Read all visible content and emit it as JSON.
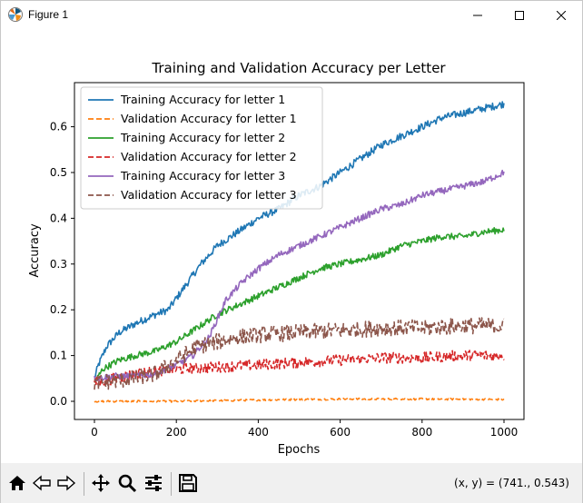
{
  "window": {
    "title": "Figure 1",
    "minimize_icon": "minimize-icon",
    "maximize_icon": "maximize-icon",
    "close_icon": "close-icon"
  },
  "toolbar": {
    "buttons": [
      "home-icon",
      "back-arrow-icon",
      "forward-arrow-icon",
      "pan-icon",
      "zoom-icon",
      "configure-subplots-icon",
      "save-icon"
    ],
    "coords_text": "(x, y) = (741., 0.543)"
  },
  "chart_data": {
    "type": "line",
    "title": "Training and Validation Accuracy per Letter",
    "xlabel": "Epochs",
    "ylabel": "Accuracy",
    "xlim": [
      0,
      1000
    ],
    "ylim": [
      0.0,
      0.65
    ],
    "xticks": [
      0,
      200,
      400,
      600,
      800,
      1000
    ],
    "yticks": [
      0.0,
      0.1,
      0.2,
      0.3,
      0.4,
      0.5,
      0.6
    ],
    "xtick_labels": [
      "0",
      "200",
      "400",
      "600",
      "800",
      "1000"
    ],
    "ytick_labels": [
      "0.0",
      "0.1",
      "0.2",
      "0.3",
      "0.4",
      "0.5",
      "0.6"
    ],
    "legend_position": "upper left",
    "grid": false,
    "series": [
      {
        "name": "Training Accuracy for letter 1",
        "color": "#1f77b4",
        "dash": "solid",
        "noise": 0.008,
        "points": [
          [
            0,
            0.05
          ],
          [
            10,
            0.08
          ],
          [
            30,
            0.12
          ],
          [
            60,
            0.15
          ],
          [
            100,
            0.17
          ],
          [
            150,
            0.19
          ],
          [
            180,
            0.2
          ],
          [
            220,
            0.25
          ],
          [
            260,
            0.3
          ],
          [
            300,
            0.34
          ],
          [
            350,
            0.37
          ],
          [
            400,
            0.4
          ],
          [
            450,
            0.42
          ],
          [
            500,
            0.45
          ],
          [
            550,
            0.47
          ],
          [
            600,
            0.5
          ],
          [
            650,
            0.53
          ],
          [
            700,
            0.56
          ],
          [
            750,
            0.58
          ],
          [
            800,
            0.6
          ],
          [
            850,
            0.62
          ],
          [
            900,
            0.63
          ],
          [
            950,
            0.64
          ],
          [
            1000,
            0.65
          ]
        ]
      },
      {
        "name": "Validation Accuracy for letter 1",
        "color": "#ff7f0e",
        "dash": "dashed",
        "noise": 0.002,
        "points": [
          [
            0,
            0.0
          ],
          [
            200,
            0.0
          ],
          [
            400,
            0.003
          ],
          [
            600,
            0.005
          ],
          [
            800,
            0.005
          ],
          [
            1000,
            0.004
          ]
        ]
      },
      {
        "name": "Training Accuracy for letter 2",
        "color": "#2ca02c",
        "dash": "solid",
        "noise": 0.007,
        "points": [
          [
            0,
            0.04
          ],
          [
            20,
            0.07
          ],
          [
            60,
            0.09
          ],
          [
            100,
            0.1
          ],
          [
            150,
            0.11
          ],
          [
            200,
            0.13
          ],
          [
            250,
            0.16
          ],
          [
            300,
            0.19
          ],
          [
            350,
            0.21
          ],
          [
            400,
            0.23
          ],
          [
            450,
            0.25
          ],
          [
            500,
            0.27
          ],
          [
            550,
            0.29
          ],
          [
            600,
            0.3
          ],
          [
            650,
            0.31
          ],
          [
            700,
            0.32
          ],
          [
            750,
            0.34
          ],
          [
            800,
            0.35
          ],
          [
            850,
            0.36
          ],
          [
            900,
            0.36
          ],
          [
            950,
            0.37
          ],
          [
            1000,
            0.375
          ]
        ]
      },
      {
        "name": "Validation Accuracy for letter 2",
        "color": "#d62728",
        "dash": "dashed",
        "noise": 0.012,
        "points": [
          [
            0,
            0.04
          ],
          [
            50,
            0.05
          ],
          [
            100,
            0.06
          ],
          [
            150,
            0.065
          ],
          [
            200,
            0.07
          ],
          [
            300,
            0.075
          ],
          [
            400,
            0.08
          ],
          [
            500,
            0.085
          ],
          [
            600,
            0.09
          ],
          [
            700,
            0.095
          ],
          [
            800,
            0.095
          ],
          [
            900,
            0.1
          ],
          [
            1000,
            0.1
          ]
        ]
      },
      {
        "name": "Training Accuracy for letter 3",
        "color": "#9467bd",
        "dash": "solid",
        "noise": 0.007,
        "points": [
          [
            0,
            0.05
          ],
          [
            50,
            0.055
          ],
          [
            100,
            0.055
          ],
          [
            150,
            0.06
          ],
          [
            200,
            0.08
          ],
          [
            240,
            0.1
          ],
          [
            280,
            0.14
          ],
          [
            320,
            0.22
          ],
          [
            360,
            0.26
          ],
          [
            400,
            0.29
          ],
          [
            450,
            0.32
          ],
          [
            500,
            0.34
          ],
          [
            550,
            0.36
          ],
          [
            600,
            0.38
          ],
          [
            650,
            0.4
          ],
          [
            700,
            0.42
          ],
          [
            750,
            0.43
          ],
          [
            800,
            0.45
          ],
          [
            850,
            0.46
          ],
          [
            900,
            0.47
          ],
          [
            950,
            0.48
          ],
          [
            1000,
            0.5
          ]
        ]
      },
      {
        "name": "Validation Accuracy for letter 3",
        "color": "#8c564b",
        "dash": "dashed",
        "noise": 0.018,
        "points": [
          [
            0,
            0.04
          ],
          [
            50,
            0.045
          ],
          [
            100,
            0.05
          ],
          [
            150,
            0.06
          ],
          [
            200,
            0.09
          ],
          [
            250,
            0.12
          ],
          [
            300,
            0.13
          ],
          [
            350,
            0.14
          ],
          [
            400,
            0.145
          ],
          [
            500,
            0.15
          ],
          [
            600,
            0.155
          ],
          [
            700,
            0.16
          ],
          [
            800,
            0.16
          ],
          [
            900,
            0.165
          ],
          [
            1000,
            0.165
          ]
        ]
      }
    ]
  }
}
